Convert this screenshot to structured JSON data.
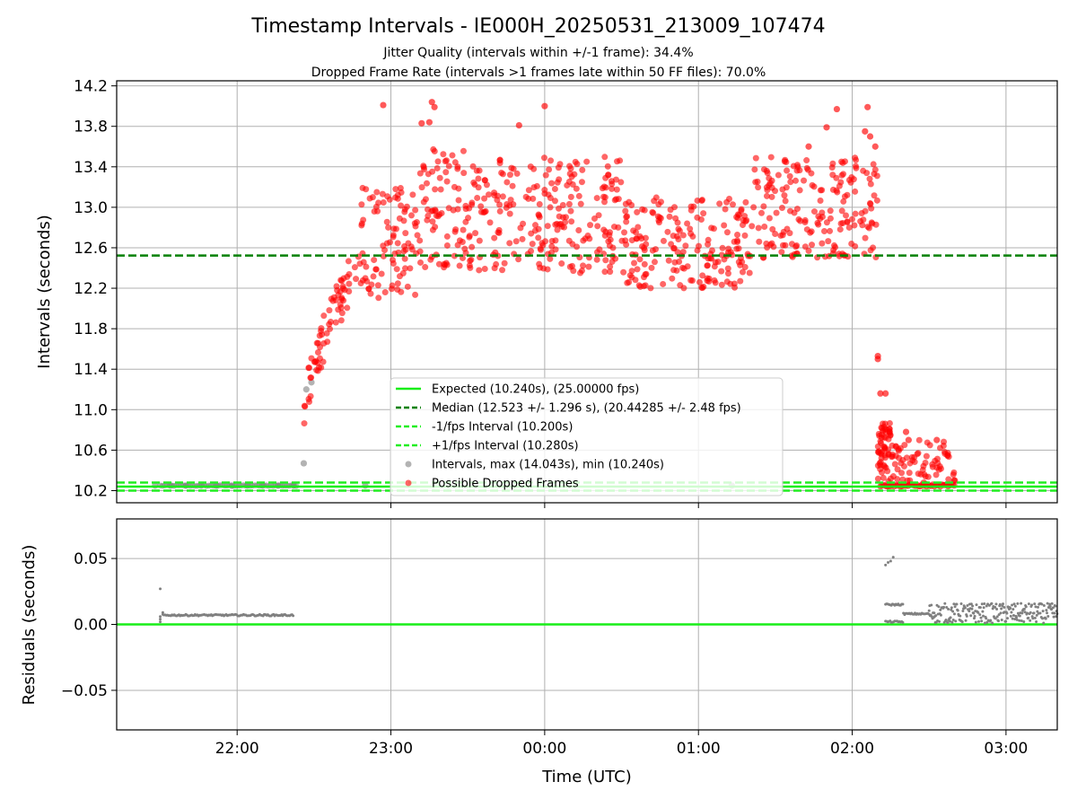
{
  "figure": {
    "title": "Timestamp Intervals - IE000H_20250531_213009_107474",
    "subtitle_1": "Jitter Quality (intervals within +/-1 frame): 34.4%",
    "subtitle_2": "Dropped Frame Rate (intervals >1 frames late within 50 FF files): 70.0%",
    "colors": {
      "expected": "#18ee18",
      "median": "#008000",
      "fps_band": "#22ee22",
      "intervals": "#808080",
      "dropped": "#ff0000",
      "grid": "#b0b0b0"
    }
  },
  "chart_data": [
    {
      "type": "scatter",
      "panel": "intervals",
      "xlabel": "",
      "ylabel": "Intervals (seconds)",
      "xlim": [
        "21:13",
        "03:20"
      ],
      "ylim": [
        10.08,
        14.25
      ],
      "yticks": [
        10.2,
        10.6,
        11.0,
        11.4,
        11.8,
        12.2,
        12.6,
        13.0,
        13.4,
        13.8,
        14.2
      ],
      "ytick_labels": [
        "10.2",
        "10.6",
        "11.0",
        "11.4",
        "11.8",
        "12.2",
        "12.6",
        "13.0",
        "13.4",
        "13.8",
        "14.2"
      ],
      "xticks": [
        "22:00",
        "23:00",
        "00:00",
        "01:00",
        "02:00",
        "03:00"
      ],
      "grid": true,
      "legend_position": "lower-center",
      "reference_lines": [
        {
          "name": "Expected (10.240s), (25.00000 fps)",
          "y": 10.24,
          "style": "solid",
          "color": "#18ee18"
        },
        {
          "name": "Median (12.523 +/- 1.296 s), (20.44285 +/- 2.48 fps)",
          "y": 12.523,
          "style": "dashed",
          "color": "#008000"
        },
        {
          "name": "-1/fps Interval (10.200s)",
          "y": 10.2,
          "style": "dashed",
          "color": "#22ee22"
        },
        {
          "name": "+1/fps Interval (10.280s)",
          "y": 10.28,
          "style": "dashed",
          "color": "#22ee22"
        }
      ],
      "series": [
        {
          "name": "Intervals, max (14.043s), min (10.240s)",
          "color": "#808080",
          "points": [
            [
              "21:28",
              10.25
            ],
            [
              "21:34",
              10.25
            ],
            [
              "21:40",
              10.25
            ],
            [
              "21:46",
              10.25
            ],
            [
              "21:52",
              10.25
            ],
            [
              "21:58",
              10.25
            ],
            [
              "22:04",
              10.25
            ],
            [
              "22:10",
              10.25
            ],
            [
              "22:16",
              10.25
            ],
            [
              "22:22",
              10.25
            ],
            [
              "22:26",
              10.47
            ],
            [
              "22:27",
              11.2
            ],
            [
              "22:29",
              11.27
            ],
            [
              "22:50",
              10.25
            ],
            [
              "01:13",
              10.25
            ]
          ]
        },
        {
          "name": "Possible Dropped Frames",
          "color": "#ff0000",
          "groups": [
            {
              "from": "22:26",
              "to": "22:48",
              "min": 10.85,
              "max": 12.45
            },
            {
              "from": "22:48",
              "to": "23:10",
              "min": 12.1,
              "max": 13.2
            },
            {
              "from": "23:10",
              "to": "23:30",
              "min": 12.4,
              "max": 13.6
            },
            {
              "from": "23:30",
              "to": "00:30",
              "min": 12.35,
              "max": 13.5
            },
            {
              "from": "00:30",
              "to": "01:20",
              "min": 12.2,
              "max": 13.1
            },
            {
              "from": "01:20",
              "to": "02:10",
              "min": 12.5,
              "max": 13.5
            },
            {
              "from": "02:10",
              "to": "02:15",
              "min": 10.26,
              "max": 10.9
            },
            {
              "from": "02:15",
              "to": "02:40",
              "min": 10.26,
              "max": 10.7
            }
          ],
          "points": [
            [
              "22:57",
              14.01
            ],
            [
              "23:16",
              14.04
            ],
            [
              "23:17",
              13.99
            ],
            [
              "23:12",
              13.83
            ],
            [
              "23:15",
              13.84
            ],
            [
              "23:50",
              13.81
            ],
            [
              "00:00",
              14.0
            ],
            [
              "01:50",
              13.79
            ],
            [
              "01:54",
              13.97
            ],
            [
              "02:06",
              13.99
            ],
            [
              "01:43",
              13.6
            ],
            [
              "02:05",
              13.75
            ],
            [
              "02:07",
              13.7
            ],
            [
              "02:09",
              13.6
            ],
            [
              "02:10",
              11.53
            ],
            [
              "02:10",
              11.5
            ],
            [
              "02:11",
              11.16
            ],
            [
              "02:13",
              11.16
            ],
            [
              "02:12",
              10.79
            ],
            [
              "02:21",
              10.78
            ],
            [
              "02:22",
              10.7
            ],
            [
              "02:33",
              10.7
            ],
            [
              "02:40",
              10.3
            ]
          ]
        }
      ]
    },
    {
      "type": "scatter",
      "panel": "residuals",
      "xlabel": "Time (UTC)",
      "ylabel": "Residuals (seconds)",
      "xlim": [
        "21:13",
        "03:20"
      ],
      "ylim": [
        -0.08,
        0.08
      ],
      "yticks": [
        -0.05,
        0.0,
        0.05
      ],
      "ytick_labels": [
        "−0.05",
        "0.00",
        "0.05"
      ],
      "xticks": [
        "22:00",
        "23:00",
        "00:00",
        "01:00",
        "02:00",
        "03:00"
      ],
      "grid": true,
      "zero_line": {
        "y": 0.0,
        "color": "#18ee18"
      },
      "series": [
        {
          "name": "Residuals",
          "color": "#808080",
          "points": [
            [
              "21:30",
              0.027
            ],
            [
              "21:30",
              0.006
            ],
            [
              "21:30",
              0.002
            ],
            [
              "21:30",
              0.004
            ],
            [
              "21:31",
              0.009
            ]
          ],
          "groups": [
            {
              "from": "21:31",
              "to": "22:22",
              "level": 0.007
            },
            {
              "from": "02:13",
              "to": "02:20",
              "level": 0.002
            },
            {
              "from": "02:13",
              "to": "02:20",
              "level": 0.015
            },
            {
              "from": "02:20",
              "to": "02:30",
              "level": 0.008
            },
            {
              "from": "02:30",
              "to": "03:20",
              "min": 0.001,
              "max": 0.016
            }
          ],
          "points_extra": [
            [
              "02:13",
              0.045
            ],
            [
              "02:14",
              0.047
            ],
            [
              "02:15",
              0.048
            ],
            [
              "02:16",
              0.051
            ]
          ]
        }
      ]
    }
  ]
}
